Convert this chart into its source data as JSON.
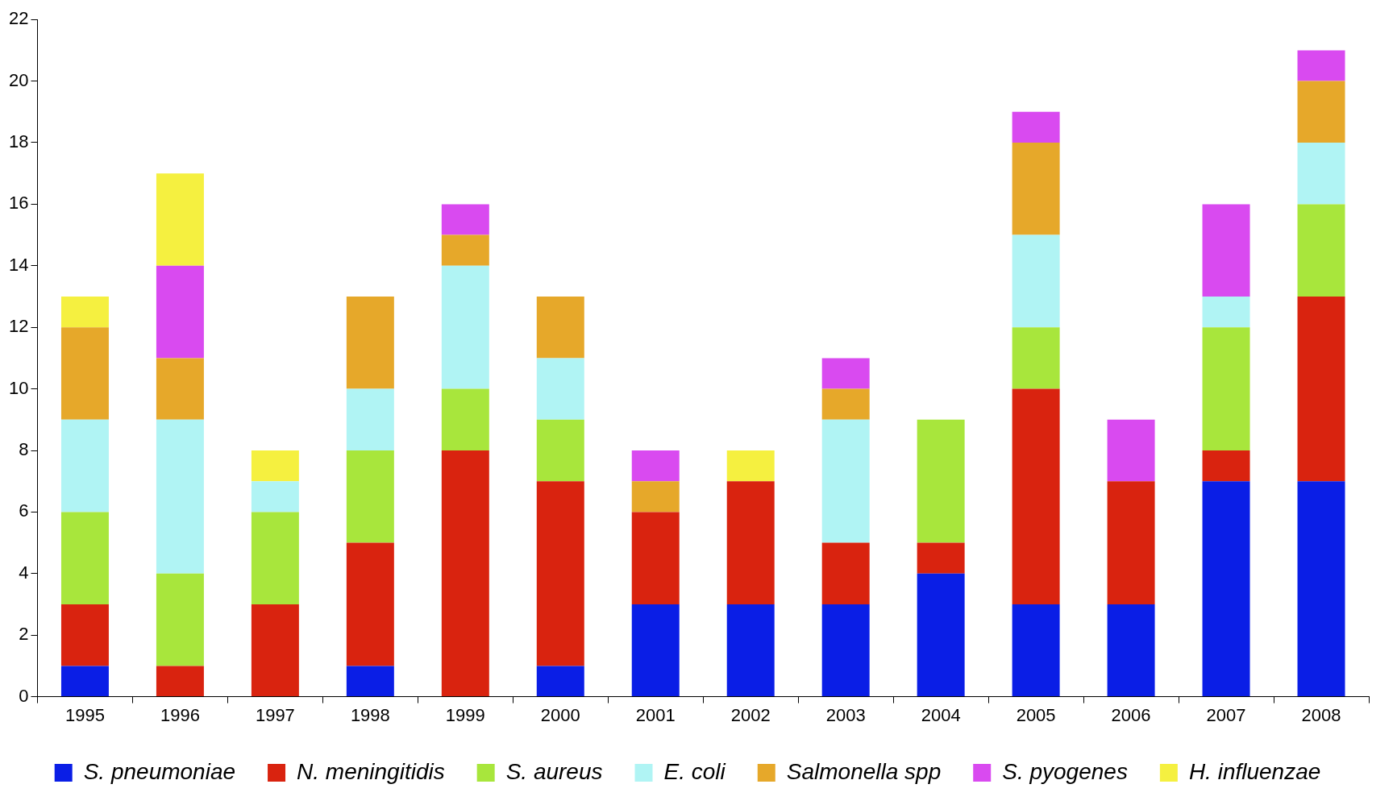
{
  "chart_data": {
    "type": "bar",
    "stacked": true,
    "categories": [
      "1995",
      "1996",
      "1997",
      "1998",
      "1999",
      "2000",
      "2001",
      "2002",
      "2003",
      "2004",
      "2005",
      "2006",
      "2007",
      "2008"
    ],
    "ylim": [
      0,
      22
    ],
    "yticks": [
      0,
      2,
      4,
      6,
      8,
      10,
      12,
      14,
      16,
      18,
      20,
      22
    ],
    "grid": false,
    "legend": "bottom",
    "series": [
      {
        "name": "S. pneumoniae",
        "color": "#0a1ee6",
        "values": [
          1,
          0,
          0,
          1,
          0,
          1,
          3,
          3,
          3,
          4,
          3,
          3,
          7,
          7
        ]
      },
      {
        "name": "N. meningitidis",
        "color": "#d9230f",
        "values": [
          2,
          1,
          3,
          4,
          8,
          6,
          3,
          4,
          2,
          1,
          7,
          4,
          1,
          6
        ]
      },
      {
        "name": "S. aureus",
        "color": "#a8e63c",
        "values": [
          3,
          3,
          3,
          3,
          2,
          2,
          0,
          0,
          0,
          4,
          2,
          0,
          4,
          3
        ]
      },
      {
        "name": "E. coli",
        "color": "#b0f4f4",
        "values": [
          3,
          5,
          1,
          2,
          4,
          2,
          0,
          0,
          4,
          0,
          3,
          0,
          1,
          2
        ]
      },
      {
        "name": "Salmonella spp",
        "color": "#e6a82a",
        "values": [
          3,
          2,
          0,
          3,
          1,
          2,
          1,
          0,
          1,
          0,
          3,
          0,
          0,
          2
        ]
      },
      {
        "name": "S. pyogenes",
        "color": "#d94af0",
        "values": [
          0,
          3,
          0,
          0,
          1,
          0,
          1,
          0,
          1,
          0,
          1,
          2,
          3,
          1
        ]
      },
      {
        "name": "H. influenzae",
        "color": "#f5f040",
        "values": [
          1,
          3,
          1,
          0,
          0,
          0,
          0,
          1,
          0,
          0,
          0,
          0,
          0,
          0
        ]
      }
    ]
  }
}
